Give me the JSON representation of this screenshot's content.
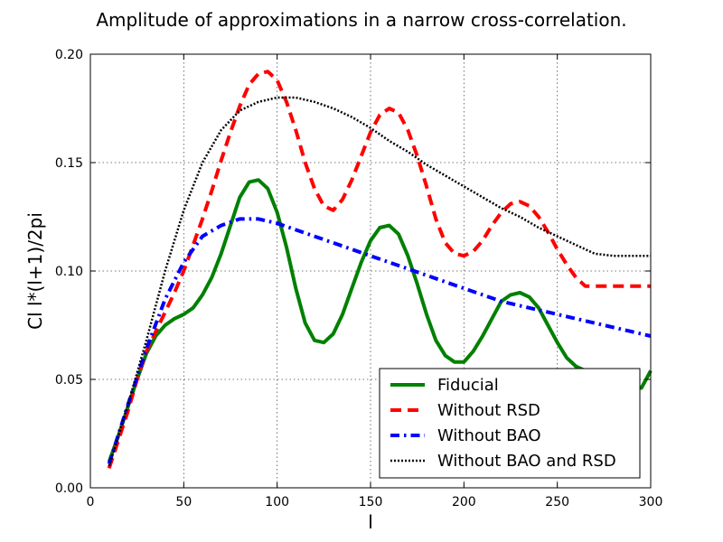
{
  "chart_data": {
    "type": "line",
    "title": "Amplitude of approximations in a narrow cross-correlation.",
    "xlabel": "l",
    "ylabel": "Cl l*(l+1)/2pi",
    "xlim": [
      0,
      300
    ],
    "ylim": [
      0.0,
      0.2
    ],
    "xticks": [
      0,
      50,
      100,
      150,
      200,
      250,
      300
    ],
    "yticks": [
      0.0,
      0.05,
      0.1,
      0.15,
      0.2
    ],
    "xtick_labels": [
      "0",
      "50",
      "100",
      "150",
      "200",
      "250",
      "300"
    ],
    "ytick_labels": [
      "0.00",
      "0.05",
      "0.10",
      "0.15",
      "0.20"
    ],
    "grid": true,
    "legend_location": "lower-right",
    "series": [
      {
        "name": "Fiducial",
        "color": "#008000",
        "style": "solid",
        "x": [
          10,
          15,
          20,
          25,
          30,
          35,
          40,
          45,
          50,
          55,
          60,
          65,
          70,
          75,
          80,
          85,
          90,
          95,
          100,
          105,
          110,
          115,
          120,
          125,
          130,
          135,
          140,
          145,
          150,
          155,
          160,
          165,
          170,
          175,
          180,
          185,
          190,
          195,
          200,
          205,
          210,
          215,
          220,
          225,
          230,
          235,
          240,
          245,
          250,
          255,
          260,
          265,
          270,
          275,
          280,
          285,
          290,
          295,
          300
        ],
        "y": [
          0.012,
          0.024,
          0.037,
          0.05,
          0.062,
          0.07,
          0.075,
          0.078,
          0.08,
          0.083,
          0.089,
          0.097,
          0.108,
          0.121,
          0.134,
          0.141,
          0.142,
          0.138,
          0.127,
          0.111,
          0.092,
          0.076,
          0.068,
          0.067,
          0.071,
          0.08,
          0.092,
          0.104,
          0.114,
          0.12,
          0.121,
          0.117,
          0.107,
          0.094,
          0.08,
          0.068,
          0.061,
          0.058,
          0.058,
          0.063,
          0.07,
          0.078,
          0.086,
          0.089,
          0.09,
          0.088,
          0.083,
          0.075,
          0.067,
          0.06,
          0.056,
          0.054,
          0.052,
          0.05,
          0.049,
          0.048,
          0.047,
          0.046,
          0.054
        ]
      },
      {
        "name": "Without RSD",
        "color": "#ff0000",
        "style": "dashed",
        "x": [
          10,
          15,
          20,
          25,
          30,
          35,
          40,
          45,
          50,
          55,
          60,
          65,
          70,
          75,
          80,
          85,
          90,
          95,
          100,
          105,
          110,
          115,
          120,
          125,
          130,
          135,
          140,
          145,
          150,
          155,
          160,
          165,
          170,
          175,
          180,
          185,
          190,
          195,
          200,
          205,
          210,
          215,
          220,
          225,
          230,
          235,
          240,
          245,
          250,
          255,
          260,
          265,
          270,
          275,
          280,
          285,
          290,
          295,
          300
        ],
        "y": [
          0.009,
          0.022,
          0.035,
          0.05,
          0.063,
          0.072,
          0.081,
          0.09,
          0.1,
          0.112,
          0.124,
          0.137,
          0.151,
          0.164,
          0.176,
          0.186,
          0.191,
          0.192,
          0.188,
          0.178,
          0.165,
          0.15,
          0.138,
          0.13,
          0.128,
          0.133,
          0.142,
          0.153,
          0.164,
          0.172,
          0.175,
          0.173,
          0.165,
          0.153,
          0.139,
          0.124,
          0.113,
          0.108,
          0.107,
          0.109,
          0.114,
          0.121,
          0.127,
          0.131,
          0.132,
          0.13,
          0.125,
          0.118,
          0.11,
          0.103,
          0.097,
          0.093,
          0.093,
          0.093,
          0.093,
          0.093,
          0.093,
          0.093,
          0.093
        ]
      },
      {
        "name": "Without BAO",
        "color": "#0000ff",
        "style": "dashdot",
        "x": [
          10,
          20,
          30,
          40,
          50,
          60,
          70,
          80,
          90,
          100,
          110,
          120,
          130,
          140,
          150,
          160,
          170,
          180,
          190,
          200,
          210,
          220,
          230,
          240,
          250,
          260,
          270,
          280,
          290,
          300
        ],
        "y": [
          0.011,
          0.038,
          0.064,
          0.087,
          0.104,
          0.116,
          0.121,
          0.124,
          0.124,
          0.122,
          0.119,
          0.116,
          0.113,
          0.11,
          0.107,
          0.104,
          0.101,
          0.098,
          0.095,
          0.092,
          0.089,
          0.086,
          0.084,
          0.082,
          0.08,
          0.078,
          0.076,
          0.074,
          0.072,
          0.07
        ]
      },
      {
        "name": "Without BAO and RSD",
        "color": "#000000",
        "style": "dotted",
        "x": [
          10,
          20,
          30,
          40,
          50,
          60,
          70,
          80,
          90,
          100,
          110,
          120,
          130,
          140,
          150,
          160,
          170,
          180,
          190,
          200,
          210,
          220,
          230,
          240,
          250,
          260,
          270,
          280,
          290,
          300
        ],
        "y": [
          0.01,
          0.038,
          0.068,
          0.1,
          0.128,
          0.15,
          0.165,
          0.174,
          0.178,
          0.18,
          0.18,
          0.178,
          0.175,
          0.171,
          0.166,
          0.16,
          0.155,
          0.149,
          0.144,
          0.139,
          0.134,
          0.129,
          0.125,
          0.12,
          0.116,
          0.112,
          0.108,
          0.107,
          0.107,
          0.107
        ]
      }
    ]
  }
}
